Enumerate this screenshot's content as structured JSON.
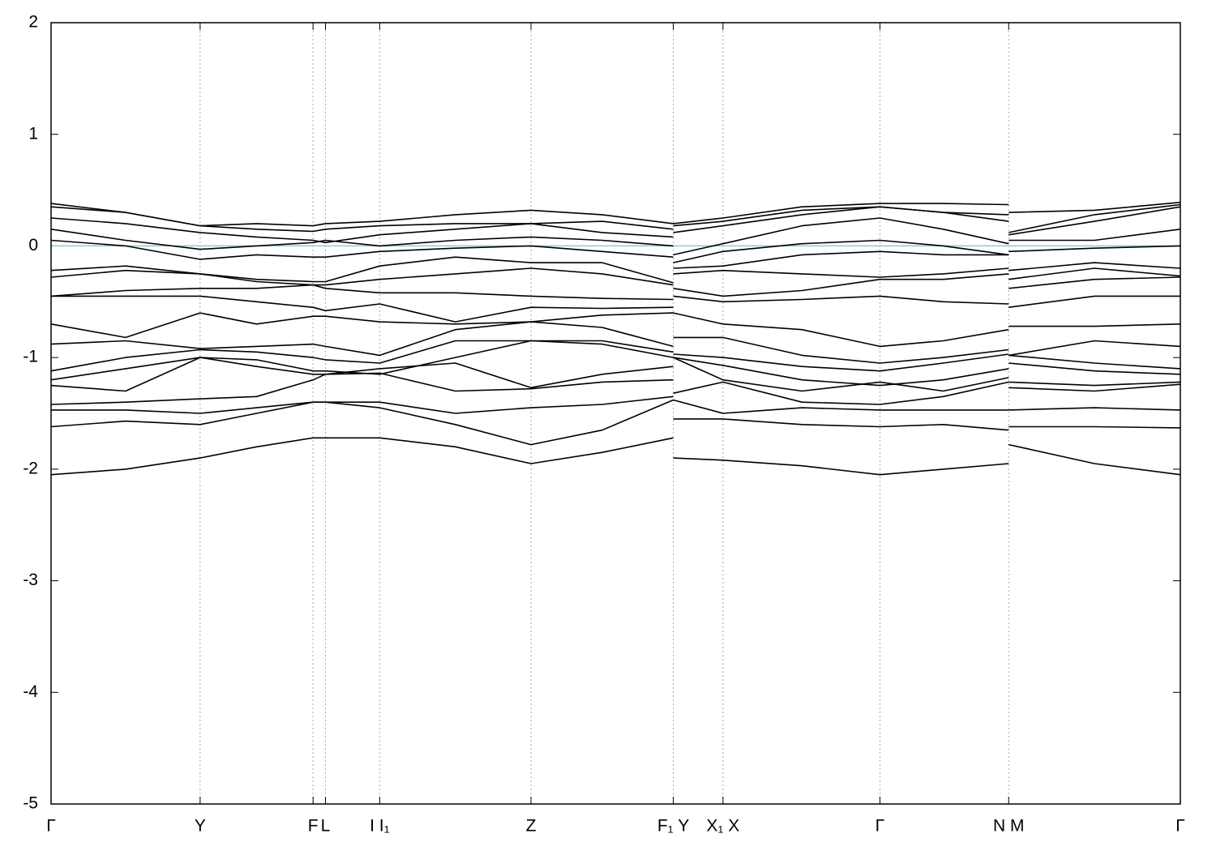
{
  "chart_data": {
    "type": "line",
    "x": [
      0,
      0.066,
      0.132,
      0.182,
      0.232,
      0.243,
      0.291,
      0.358,
      0.425,
      0.488,
      0.551,
      0.551,
      0.551,
      0.595,
      0.665,
      0.734,
      0.79,
      0.848,
      0.848,
      0.848,
      0.924,
      1
    ],
    "xlim": [
      0,
      1
    ],
    "xticks": [
      {
        "value": 0,
        "label": "Γ"
      },
      {
        "value": 0.132,
        "label": "Y"
      },
      {
        "value": 0.232,
        "label": "F"
      },
      {
        "value": 0.243,
        "label": "L"
      },
      {
        "value": 0.291,
        "label": "I  I₁"
      },
      {
        "value": 0.425,
        "label": "Z"
      },
      {
        "value": 0.551,
        "label": "F₁ Y"
      },
      {
        "value": 0.595,
        "label": "X₁ X"
      },
      {
        "value": 0.734,
        "label": "Γ"
      },
      {
        "value": 0.848,
        "label": "N M"
      },
      {
        "value": 1,
        "label": "Γ"
      }
    ],
    "ylim": [
      -5,
      2
    ],
    "yticks": [
      -5,
      -4,
      -3,
      -2,
      -1,
      0,
      1,
      2
    ],
    "grid_x": true,
    "hline": {
      "value": 0,
      "color": "#8ec9d9"
    },
    "series": [
      {
        "color": "#000000",
        "values": [
          -2.05,
          -2.0,
          -1.9,
          -1.8,
          -1.72,
          -1.72,
          -1.72,
          -1.8,
          -1.95,
          -1.85,
          -1.72,
          null,
          -1.9,
          -1.92,
          -1.97,
          -2.05,
          -2.0,
          -1.95,
          null,
          -1.78,
          -1.95,
          -2.05
        ]
      },
      {
        "color": "#000000",
        "values": [
          -1.62,
          -1.57,
          -1.6,
          -1.5,
          -1.4,
          -1.4,
          -1.45,
          -1.6,
          -1.78,
          -1.65,
          -1.38,
          null,
          -1.55,
          -1.55,
          -1.6,
          -1.62,
          -1.6,
          -1.65,
          null,
          -1.62,
          -1.62,
          -1.63
        ]
      },
      {
        "color": "#000000",
        "values": [
          -1.47,
          -1.47,
          -1.5,
          -1.45,
          -1.4,
          -1.4,
          -1.4,
          -1.5,
          -1.45,
          -1.42,
          -1.35,
          null,
          -1.38,
          -1.5,
          -1.45,
          -1.47,
          -1.47,
          -1.47,
          null,
          -1.47,
          -1.45,
          -1.47
        ]
      },
      {
        "color": "#000000",
        "values": [
          -1.42,
          -1.4,
          -1.37,
          -1.35,
          -1.2,
          -1.15,
          -1.14,
          -1.3,
          -1.28,
          -1.22,
          -1.2,
          null,
          -1.32,
          -1.22,
          -1.4,
          -1.42,
          -1.35,
          -1.22,
          null,
          -1.27,
          -1.3,
          -1.24
        ]
      },
      {
        "color": "#000000",
        "values": [
          -1.25,
          -1.3,
          -1.0,
          -1.08,
          -1.15,
          -1.15,
          -1.1,
          -1.05,
          -1.27,
          -1.15,
          -1.08,
          null,
          -1.0,
          -1.2,
          -1.3,
          -1.22,
          -1.3,
          -1.18,
          null,
          -1.22,
          -1.25,
          -1.22
        ]
      },
      {
        "color": "#000000",
        "values": [
          -1.2,
          -1.1,
          -1.0,
          -1.02,
          -1.12,
          -1.12,
          -1.15,
          -1.0,
          -0.85,
          -0.88,
          -1.0,
          null,
          -1.0,
          -1.07,
          -1.2,
          -1.25,
          -1.2,
          -1.1,
          null,
          -1.05,
          -1.12,
          -1.15
        ]
      },
      {
        "color": "#000000",
        "values": [
          -1.12,
          -1.0,
          -0.93,
          -0.95,
          -1.0,
          -1.02,
          -1.05,
          -0.85,
          -0.85,
          -0.85,
          -0.95,
          null,
          -0.97,
          -1.0,
          -1.08,
          -1.12,
          -1.05,
          -0.97,
          null,
          -0.98,
          -1.05,
          -1.1
        ]
      },
      {
        "color": "#000000",
        "values": [
          -0.88,
          -0.85,
          -0.92,
          -0.9,
          -0.88,
          -0.9,
          -0.98,
          -0.75,
          -0.68,
          -0.73,
          -0.9,
          null,
          -0.82,
          -0.82,
          -0.98,
          -1.05,
          -1.0,
          -0.93,
          null,
          -0.98,
          -0.85,
          -0.9
        ]
      },
      {
        "color": "#000000",
        "values": [
          -0.7,
          -0.82,
          -0.6,
          -0.7,
          -0.63,
          -0.63,
          -0.68,
          -0.7,
          -0.68,
          -0.62,
          -0.6,
          null,
          -0.6,
          -0.7,
          -0.75,
          -0.9,
          -0.85,
          -0.75,
          null,
          -0.72,
          -0.72,
          -0.7
        ]
      },
      {
        "color": "#000000",
        "values": [
          -0.45,
          -0.45,
          -0.45,
          -0.5,
          -0.55,
          -0.58,
          -0.52,
          -0.68,
          -0.55,
          -0.56,
          -0.55,
          null,
          -0.45,
          -0.5,
          -0.48,
          -0.45,
          -0.5,
          -0.52,
          null,
          -0.55,
          -0.45,
          -0.45
        ]
      },
      {
        "color": "#000000",
        "values": [
          -0.45,
          -0.4,
          -0.38,
          -0.38,
          -0.35,
          -0.38,
          -0.42,
          -0.42,
          -0.45,
          -0.47,
          -0.48,
          null,
          -0.38,
          -0.45,
          -0.4,
          -0.3,
          -0.3,
          -0.25,
          null,
          -0.38,
          -0.3,
          -0.28
        ]
      },
      {
        "color": "#000000",
        "values": [
          -0.28,
          -0.22,
          -0.25,
          -0.32,
          -0.35,
          -0.35,
          -0.3,
          -0.25,
          -0.2,
          -0.25,
          -0.35,
          null,
          -0.25,
          -0.22,
          -0.25,
          -0.28,
          -0.25,
          -0.2,
          null,
          -0.3,
          -0.2,
          -0.27
        ]
      },
      {
        "color": "#000000",
        "values": [
          -0.22,
          -0.18,
          -0.25,
          -0.3,
          -0.32,
          -0.32,
          -0.18,
          -0.1,
          -0.15,
          -0.15,
          -0.33,
          null,
          -0.2,
          -0.18,
          -0.08,
          -0.05,
          -0.08,
          -0.08,
          null,
          -0.22,
          -0.15,
          -0.2
        ]
      },
      {
        "color": "#000000",
        "values": [
          0.05,
          0.0,
          -0.12,
          -0.08,
          -0.1,
          -0.1,
          -0.05,
          -0.02,
          0.0,
          -0.05,
          -0.1,
          null,
          -0.15,
          -0.05,
          0.02,
          0.05,
          0.0,
          -0.08,
          null,
          -0.05,
          -0.02,
          0.0
        ]
      },
      {
        "color": "#000000",
        "values": [
          0.15,
          0.05,
          -0.03,
          0.0,
          0.03,
          0.05,
          0.0,
          0.05,
          0.08,
          0.05,
          0.0,
          null,
          -0.08,
          0.02,
          0.18,
          0.25,
          0.15,
          0.02,
          null,
          0.05,
          0.05,
          0.15
        ]
      },
      {
        "color": "#000000",
        "values": [
          0.25,
          0.2,
          0.12,
          0.08,
          0.05,
          0.03,
          0.1,
          0.15,
          0.2,
          0.12,
          0.08,
          null,
          0.12,
          0.18,
          0.28,
          0.35,
          0.3,
          0.22,
          null,
          0.1,
          0.22,
          0.35
        ]
      },
      {
        "color": "#000000",
        "values": [
          0.35,
          0.3,
          0.18,
          0.15,
          0.13,
          0.15,
          0.18,
          0.2,
          0.2,
          0.22,
          0.15,
          null,
          0.18,
          0.22,
          0.32,
          0.35,
          0.3,
          0.28,
          null,
          0.12,
          0.28,
          0.37
        ]
      },
      {
        "color": "#000000",
        "values": [
          0.38,
          0.3,
          0.18,
          0.2,
          0.18,
          0.2,
          0.22,
          0.28,
          0.32,
          0.28,
          0.2,
          null,
          0.2,
          0.25,
          0.35,
          0.38,
          0.38,
          0.37,
          null,
          0.3,
          0.32,
          0.39
        ]
      }
    ]
  }
}
